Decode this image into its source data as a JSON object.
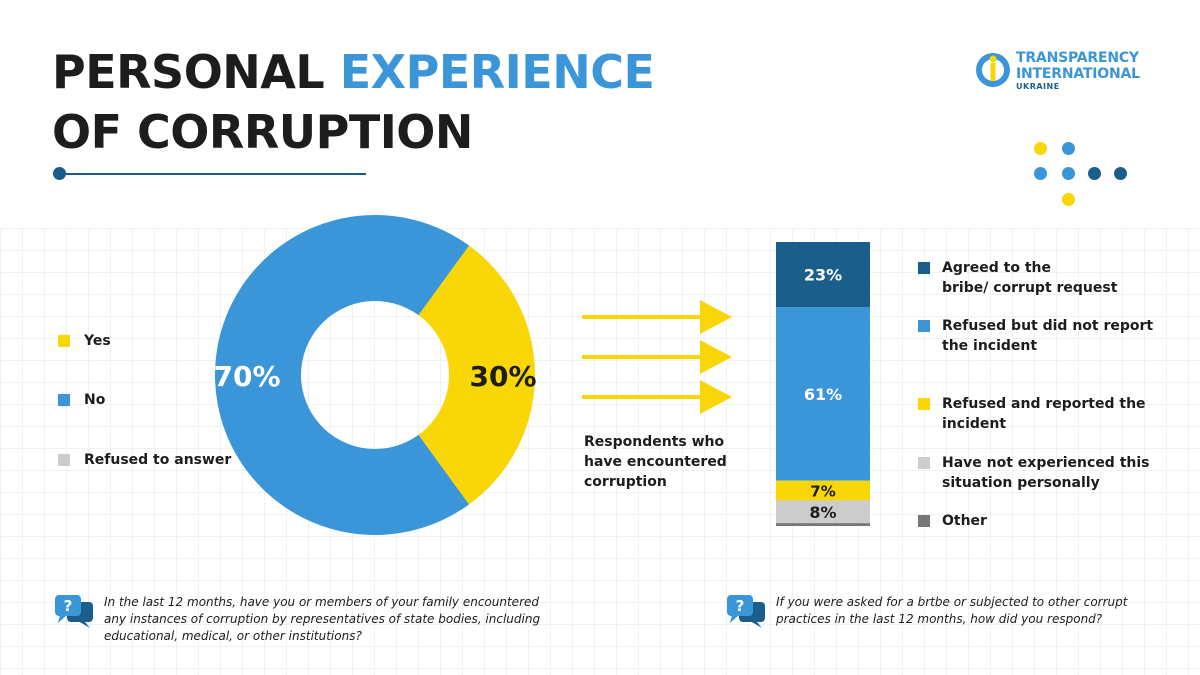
{
  "title": {
    "line1_part1": "PERSONAL ",
    "line1_part2": "EXPERIENCE",
    "line2": "OF CORRUPTION"
  },
  "logo": {
    "line1": "TRANSPARENCY",
    "line2": "INTERNATIONAL",
    "line3": "UKRAINE"
  },
  "colors": {
    "dark_blue": "#1a5f8c",
    "blue": "#3b95d9",
    "yellow": "#f9d605",
    "light_gray": "#cccccc",
    "dark_gray": "#777777",
    "text": "#1d1d1b"
  },
  "chart_data": [
    {
      "type": "pie",
      "variant": "donut",
      "legend_position": "left",
      "categories": [
        "Yes",
        "No",
        "Refused to answer"
      ],
      "values": [
        30,
        70,
        0
      ],
      "value_labels": [
        "30%",
        "70%",
        ""
      ],
      "colors": [
        "#f9d605",
        "#3b95d9",
        "#cccccc"
      ]
    },
    {
      "type": "bar",
      "variant": "stacked",
      "legend_position": "right",
      "categories": [
        "Respondents who have encountered corruption"
      ],
      "series": [
        {
          "name": "Agreed to the bribe/ corrupt request",
          "value": 23,
          "label": "23%",
          "color": "#1a5f8c"
        },
        {
          "name": "Refused but did not report the incident",
          "value": 61,
          "label": "61%",
          "color": "#3b95d9"
        },
        {
          "name": "Refused and reported the incident",
          "value": 7,
          "label": "7%",
          "color": "#f9d605"
        },
        {
          "name": "Have not experienced this situation personally",
          "value": 8,
          "label": "8%",
          "color": "#cccccc"
        },
        {
          "name": "Other",
          "value": 1,
          "label": "",
          "color": "#777777"
        }
      ]
    }
  ],
  "legend_left": [
    {
      "label": "Yes",
      "color": "#f9d605"
    },
    {
      "label": "No",
      "color": "#3b95d9"
    },
    {
      "label": "Refused to answer",
      "color": "#cccccc"
    }
  ],
  "legend_right": [
    {
      "label_line1": "Agreed to the",
      "label_line2": "bribe/ corrupt request",
      "color": "#1a5f8c"
    },
    {
      "label_line1": "Refused but did not report",
      "label_line2": "the incident",
      "color": "#3b95d9"
    },
    {
      "label_line1": "Refused and reported the",
      "label_line2": "incident",
      "color": "#f9d605"
    },
    {
      "label_line1": "Have not experienced this",
      "label_line2": "situation personally",
      "color": "#cccccc"
    },
    {
      "label_line1": "Other",
      "label_line2": "",
      "color": "#777777"
    }
  ],
  "respondents_label": {
    "line1": "Respondents who",
    "line2": "have encountered",
    "line3": "corruption"
  },
  "question_left": {
    "line1": "In the last 12 months, have you or members of your family encountered",
    "line2": "any instances of corruption by representatives of state bodies, including",
    "line3": "educational, medical, or other institutions?"
  },
  "question_right": {
    "line1": "If you were asked for a brtbe or subjected to other corrupt",
    "line2": "practices in the last 12 months, how did you respond?"
  },
  "question_icon_glyph": "?"
}
